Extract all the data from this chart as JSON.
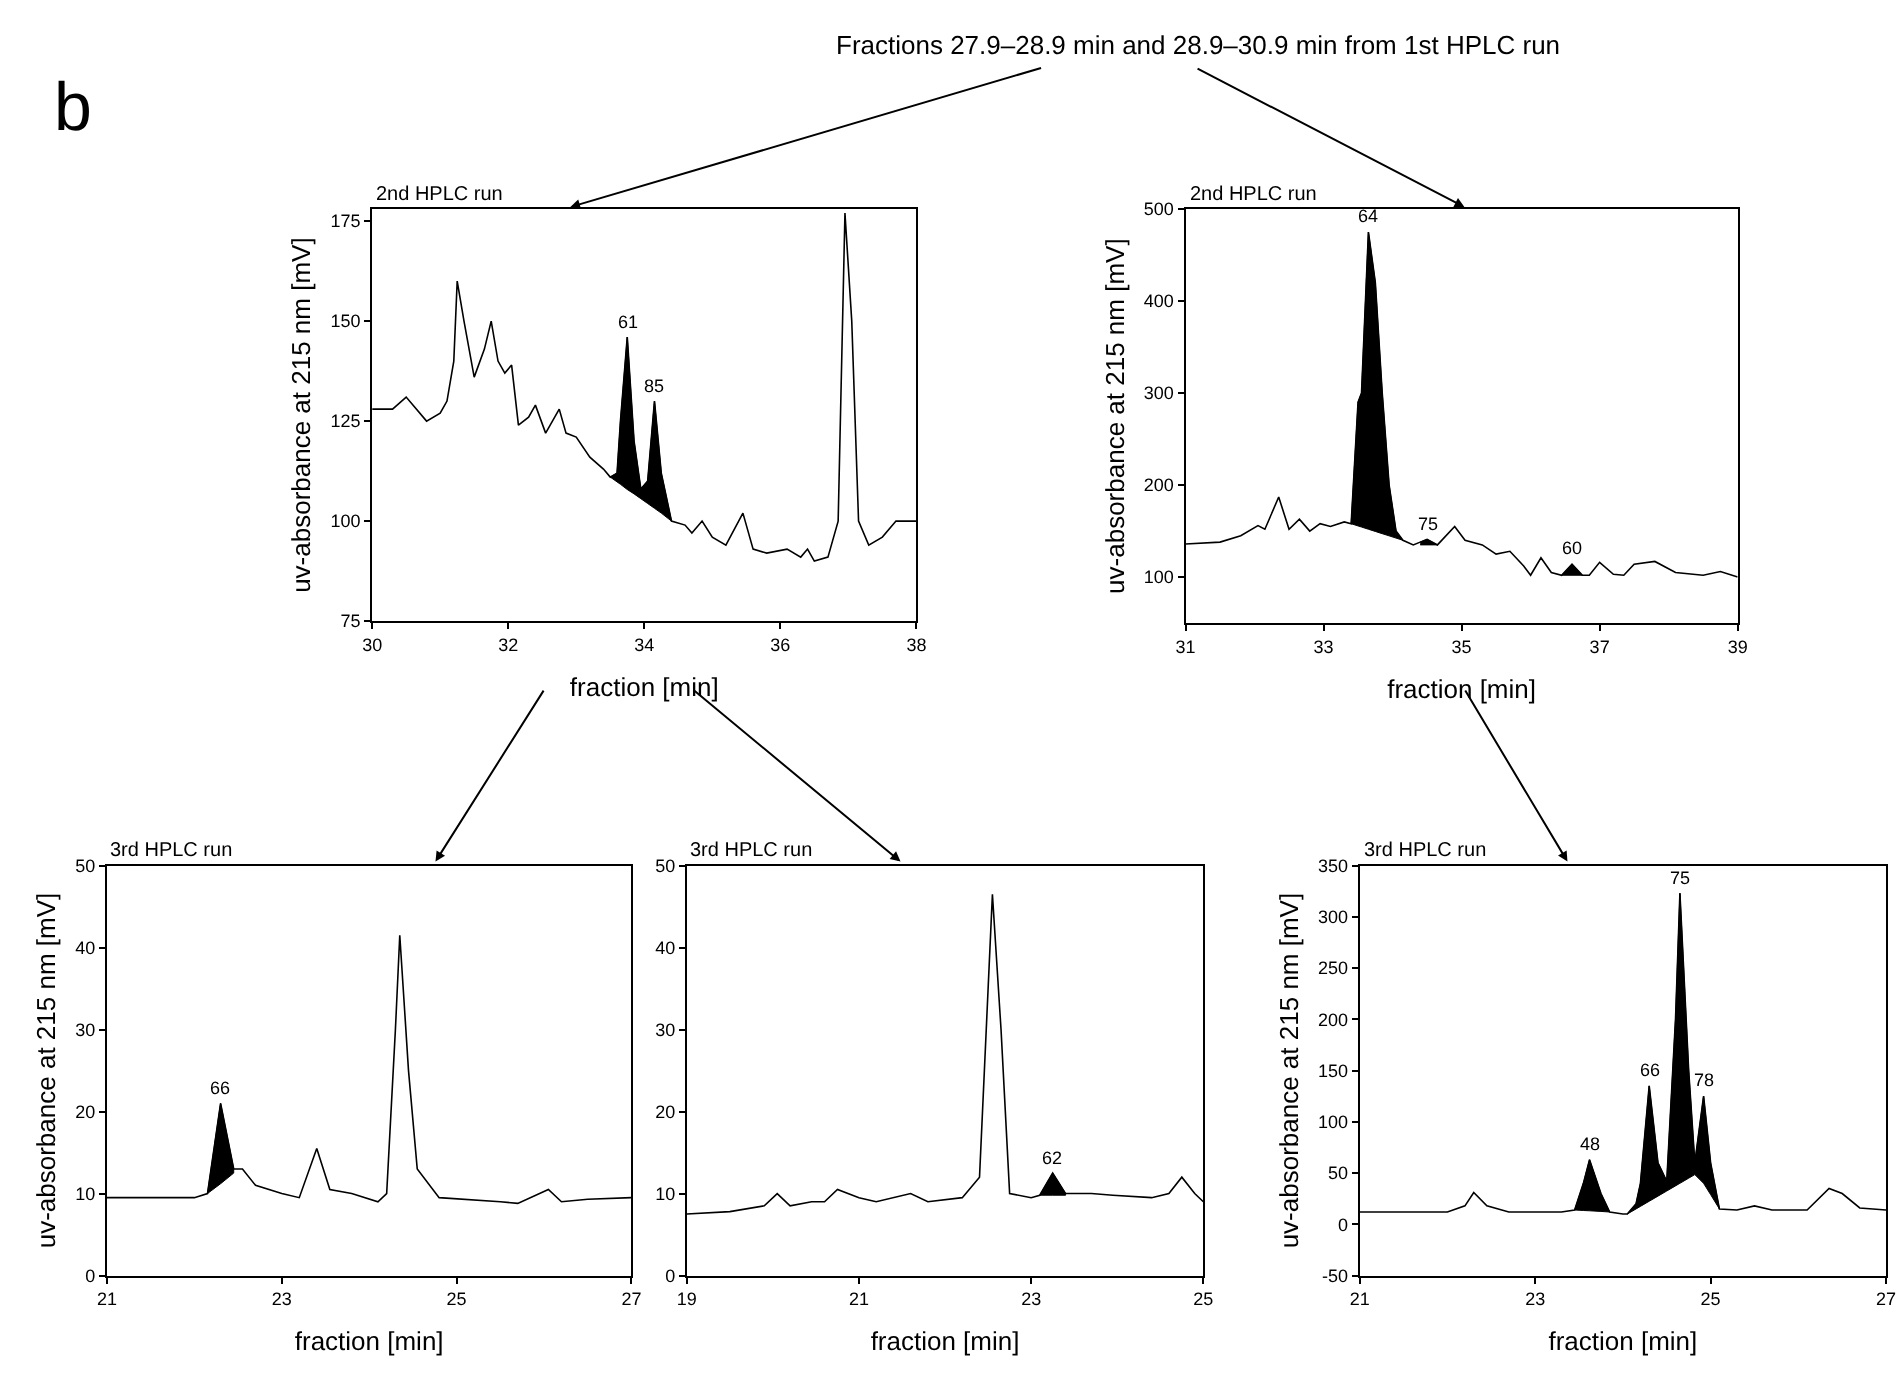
{
  "chart_data": [
    {
      "type": "line",
      "title": "2nd HPLC run",
      "xlabel": "fraction [min]",
      "ylabel": "uv-absorbance at 215 nm [mV]",
      "xlim": [
        30,
        38
      ],
      "xticks": [
        30,
        32,
        34,
        36,
        38
      ],
      "ylim": [
        75,
        178
      ],
      "yticks": [
        75,
        100,
        125,
        150,
        175
      ],
      "grid": false,
      "legend": false,
      "annotations": [
        "b",
        "Fractions 27.9–28.9 min and 28.9–30.9 min from 1st HPLC run",
        {
          "text": "61",
          "x": 33.75,
          "y": 146
        },
        {
          "text": "85",
          "x": 34.15,
          "y": 130
        }
      ],
      "series": [
        {
          "color": "#000000",
          "x": [
            30,
            30.3,
            30.5,
            30.8,
            31.0,
            31.1,
            31.2,
            31.25,
            31.35,
            31.5,
            31.65,
            31.75,
            31.85,
            31.95,
            32.05,
            32.15,
            32.3,
            32.4,
            32.55,
            32.75,
            32.85,
            33.0,
            33.2,
            33.4,
            33.5,
            33.6,
            33.65,
            33.75,
            33.85,
            33.95,
            34.05,
            34.15,
            34.25,
            34.4,
            34.6,
            34.7,
            34.85,
            35.0,
            35.2,
            35.45,
            35.6,
            35.8,
            36.1,
            36.3,
            36.4,
            36.5,
            36.7,
            36.85,
            36.95,
            37.05,
            37.15,
            37.3,
            37.5,
            37.7,
            38.0
          ],
          "values": [
            128,
            128,
            131,
            125,
            127,
            130,
            140,
            160,
            150,
            136,
            143,
            150,
            140,
            137,
            139,
            124,
            126,
            129,
            122,
            128,
            122,
            121,
            116,
            113,
            111,
            112,
            125,
            146,
            120,
            108,
            110,
            130,
            112,
            100,
            99,
            97,
            100,
            96,
            94,
            102,
            93,
            92,
            93,
            91,
            93,
            90,
            91,
            100,
            177,
            150,
            100,
            94,
            96,
            100,
            100
          ],
          "lower": [
            null,
            null,
            null,
            null,
            null,
            null,
            null,
            null,
            null,
            null,
            null,
            null,
            null,
            null,
            null,
            null,
            null,
            null,
            null,
            null,
            null,
            null,
            null,
            null,
            111,
            109.8,
            109.2,
            107.9,
            106.8,
            105.6,
            104.4,
            103.2,
            102,
            100,
            null,
            null,
            null,
            null,
            null,
            null,
            null,
            null,
            null,
            null,
            null,
            null,
            null,
            null,
            null,
            null,
            null,
            null,
            null,
            null,
            null
          ],
          "upper": [
            null,
            null,
            null,
            null,
            null,
            null,
            null,
            null,
            null,
            null,
            null,
            null,
            null,
            null,
            null,
            null,
            null,
            null,
            null,
            null,
            null,
            null,
            null,
            null,
            111,
            112,
            125,
            146,
            120,
            108,
            110,
            130,
            112,
            100,
            null,
            null,
            null,
            null,
            null,
            null,
            null,
            null,
            null,
            null,
            null,
            null,
            null,
            null,
            null,
            null,
            null,
            null,
            null,
            null,
            null
          ]
        }
      ]
    },
    {
      "type": "line",
      "title": "2nd HPLC run",
      "xlabel": "fraction [min]",
      "ylabel": "uv-absorbance at 215 nm [mV]",
      "xlim": [
        31,
        39
      ],
      "xticks": [
        31,
        33,
        35,
        37,
        39
      ],
      "ylim": [
        50,
        500
      ],
      "yticks": [
        100,
        200,
        300,
        400,
        500
      ],
      "grid": false,
      "legend": false,
      "annotations": [
        {
          "text": "64",
          "x": 33.65,
          "y": 475
        },
        {
          "text": "75",
          "x": 34.5,
          "y": 141
        },
        {
          "text": "60",
          "x": 36.6,
          "y": 114
        }
      ],
      "series": [
        {
          "color": "#000000",
          "x": [
            31.0,
            31.5,
            31.8,
            32.05,
            32.15,
            32.35,
            32.5,
            32.65,
            32.8,
            32.95,
            33.1,
            33.3,
            33.4,
            33.5,
            33.55,
            33.65,
            33.75,
            33.85,
            33.95,
            34.05,
            34.15,
            34.3,
            34.4,
            34.5,
            34.65,
            34.9,
            35.05,
            35.3,
            35.5,
            35.7,
            35.9,
            36.0,
            36.15,
            36.3,
            36.45,
            36.6,
            36.75,
            36.85,
            37.0,
            37.2,
            37.35,
            37.5,
            37.8,
            38.1,
            38.5,
            38.75,
            39.0
          ],
          "values": [
            136,
            138,
            145,
            156,
            152,
            187,
            152,
            163,
            150,
            158,
            155,
            160,
            158,
            290,
            300,
            475,
            420,
            300,
            200,
            150,
            140,
            135,
            138,
            141,
            135,
            155,
            140,
            135,
            125,
            128,
            112,
            102,
            121,
            105,
            102,
            114,
            102,
            102,
            116,
            103,
            102,
            114,
            117,
            105,
            102,
            106,
            100
          ],
          "lower": [
            null,
            null,
            null,
            null,
            null,
            null,
            null,
            null,
            null,
            null,
            null,
            null,
            158,
            155.6,
            154.4,
            152,
            149.6,
            147.2,
            144.8,
            142.4,
            140,
            null,
            135,
            135,
            135,
            null,
            null,
            null,
            null,
            null,
            null,
            null,
            null,
            null,
            102,
            102,
            102,
            null,
            null,
            null,
            null,
            null,
            null,
            null,
            null,
            null,
            null
          ],
          "upper": [
            null,
            null,
            null,
            null,
            null,
            null,
            null,
            null,
            null,
            null,
            null,
            null,
            158,
            290,
            300,
            475,
            420,
            300,
            200,
            150,
            140,
            null,
            138,
            141,
            135,
            null,
            null,
            null,
            null,
            null,
            null,
            null,
            null,
            null,
            102,
            114,
            102,
            null,
            null,
            null,
            null,
            null,
            null,
            null,
            null,
            null,
            null
          ]
        }
      ]
    },
    {
      "type": "line",
      "title": "3rd HPLC run",
      "xlabel": "fraction [min]",
      "ylabel": "uv-absorbance at 215 nm [mV]",
      "xlim": [
        21,
        27
      ],
      "xticks": [
        21,
        23,
        25,
        27
      ],
      "ylim": [
        0,
        50
      ],
      "yticks": [
        0,
        10,
        20,
        30,
        40,
        50
      ],
      "grid": false,
      "legend": false,
      "annotations": [
        {
          "text": "66",
          "x": 22.3,
          "y": 21
        }
      ],
      "series": [
        {
          "color": "#000000",
          "x": [
            21,
            22.0,
            22.15,
            22.3,
            22.45,
            22.55,
            22.7,
            23.0,
            23.2,
            23.4,
            23.55,
            23.8,
            24.1,
            24.2,
            24.3,
            24.35,
            24.45,
            24.55,
            24.8,
            25.5,
            25.7,
            26.05,
            26.2,
            26.5,
            27
          ],
          "values": [
            9.5,
            9.5,
            10,
            21,
            13,
            13,
            11,
            10,
            9.5,
            15.5,
            10.5,
            10,
            9,
            10,
            30,
            41.5,
            25,
            13,
            9.5,
            9,
            8.8,
            10.5,
            9,
            9.3,
            9.5
          ],
          "lower": [
            null,
            null,
            10,
            11.2,
            12.5,
            null,
            null,
            null,
            null,
            null,
            null,
            null,
            null,
            null,
            null,
            null,
            null,
            null,
            null,
            null,
            null,
            null,
            null,
            null,
            null
          ],
          "upper": [
            null,
            null,
            10,
            21,
            13,
            null,
            null,
            null,
            null,
            null,
            null,
            null,
            null,
            null,
            null,
            null,
            null,
            null,
            null,
            null,
            null,
            null,
            null,
            null,
            null
          ]
        }
      ]
    },
    {
      "type": "line",
      "title": "3rd HPLC run",
      "xlabel": "fraction [min]",
      "xlim": [
        19,
        25
      ],
      "xticks": [
        19,
        21,
        23,
        25
      ],
      "ylim": [
        0,
        50
      ],
      "yticks": [
        0,
        10,
        20,
        30,
        40,
        50
      ],
      "grid": false,
      "legend": false,
      "annotations": [
        {
          "text": "62",
          "x": 23.25,
          "y": 12.5
        }
      ],
      "series": [
        {
          "color": "#000000",
          "x": [
            19,
            19.5,
            19.9,
            20.05,
            20.2,
            20.45,
            20.6,
            20.75,
            21.0,
            21.2,
            21.6,
            21.8,
            22.2,
            22.4,
            22.5,
            22.55,
            22.65,
            22.75,
            23.0,
            23.1,
            23.25,
            23.4,
            23.7,
            23.95,
            24.4,
            24.6,
            24.75,
            24.9,
            25
          ],
          "values": [
            7.5,
            7.8,
            8.5,
            10,
            8.5,
            9,
            9,
            10.5,
            9.5,
            9,
            10,
            9,
            9.5,
            12,
            35,
            46.5,
            30,
            10,
            9.5,
            9.8,
            12.5,
            10,
            10,
            9.8,
            9.5,
            10,
            12,
            10,
            9
          ],
          "lower": [
            null,
            null,
            null,
            null,
            null,
            null,
            null,
            null,
            null,
            null,
            null,
            null,
            null,
            null,
            null,
            null,
            null,
            null,
            null,
            9.8,
            9.8,
            9.8,
            null,
            null,
            null,
            null,
            null,
            null,
            null
          ],
          "upper": [
            null,
            null,
            null,
            null,
            null,
            null,
            null,
            null,
            null,
            null,
            null,
            null,
            null,
            null,
            null,
            null,
            null,
            null,
            null,
            9.8,
            12.5,
            10,
            null,
            null,
            null,
            null,
            null,
            null,
            null
          ]
        }
      ]
    },
    {
      "type": "line",
      "title": "3rd HPLC run",
      "xlabel": "fraction [min]",
      "ylabel": "uv-absorbance at 215 nm [mV]",
      "xlim": [
        21,
        27
      ],
      "xticks": [
        21,
        23,
        25,
        27
      ],
      "ylim": [
        -50,
        350
      ],
      "yticks": [
        -50,
        0,
        50,
        100,
        150,
        200,
        250,
        300,
        350
      ],
      "grid": false,
      "legend": false,
      "annotations": [
        {
          "text": "48",
          "x": 23.62,
          "y": 63
        },
        {
          "text": "66",
          "x": 24.3,
          "y": 135
        },
        {
          "text": "75",
          "x": 24.65,
          "y": 323
        },
        {
          "text": "78",
          "x": 24.92,
          "y": 125
        }
      ],
      "series": [
        {
          "color": "#000000",
          "x": [
            21,
            22.0,
            22.2,
            22.3,
            22.45,
            22.7,
            23.3,
            23.45,
            23.55,
            23.62,
            23.75,
            23.85,
            24.0,
            24.05,
            24.15,
            24.2,
            24.3,
            24.4,
            24.5,
            24.6,
            24.65,
            24.75,
            24.82,
            24.92,
            25.0,
            25.1,
            25.3,
            25.5,
            25.7,
            26.1,
            26.35,
            26.5,
            26.7,
            27
          ],
          "values": [
            12,
            12,
            18,
            31,
            18,
            12,
            12,
            14,
            40,
            63,
            30,
            12,
            10,
            10,
            20,
            40,
            135,
            60,
            42,
            200,
            323,
            150,
            60,
            125,
            60,
            15,
            14,
            18,
            14,
            14,
            35,
            30,
            16,
            14
          ],
          "lower": [
            null,
            null,
            null,
            null,
            null,
            null,
            null,
            14,
            13.5,
            13.2,
            12.6,
            12,
            null,
            10,
            15,
            17.5,
            22.5,
            27.5,
            32.5,
            37.5,
            40,
            45,
            48.5,
            40,
            29,
            15,
            null,
            null,
            null,
            null,
            null,
            null,
            null,
            null
          ],
          "upper": [
            null,
            null,
            null,
            null,
            null,
            null,
            null,
            14,
            40,
            63,
            30,
            12,
            null,
            10,
            20,
            40,
            135,
            60,
            42,
            200,
            323,
            150,
            60,
            125,
            60,
            15,
            null,
            null,
            null,
            null,
            null,
            null,
            null,
            null
          ]
        }
      ]
    }
  ]
}
